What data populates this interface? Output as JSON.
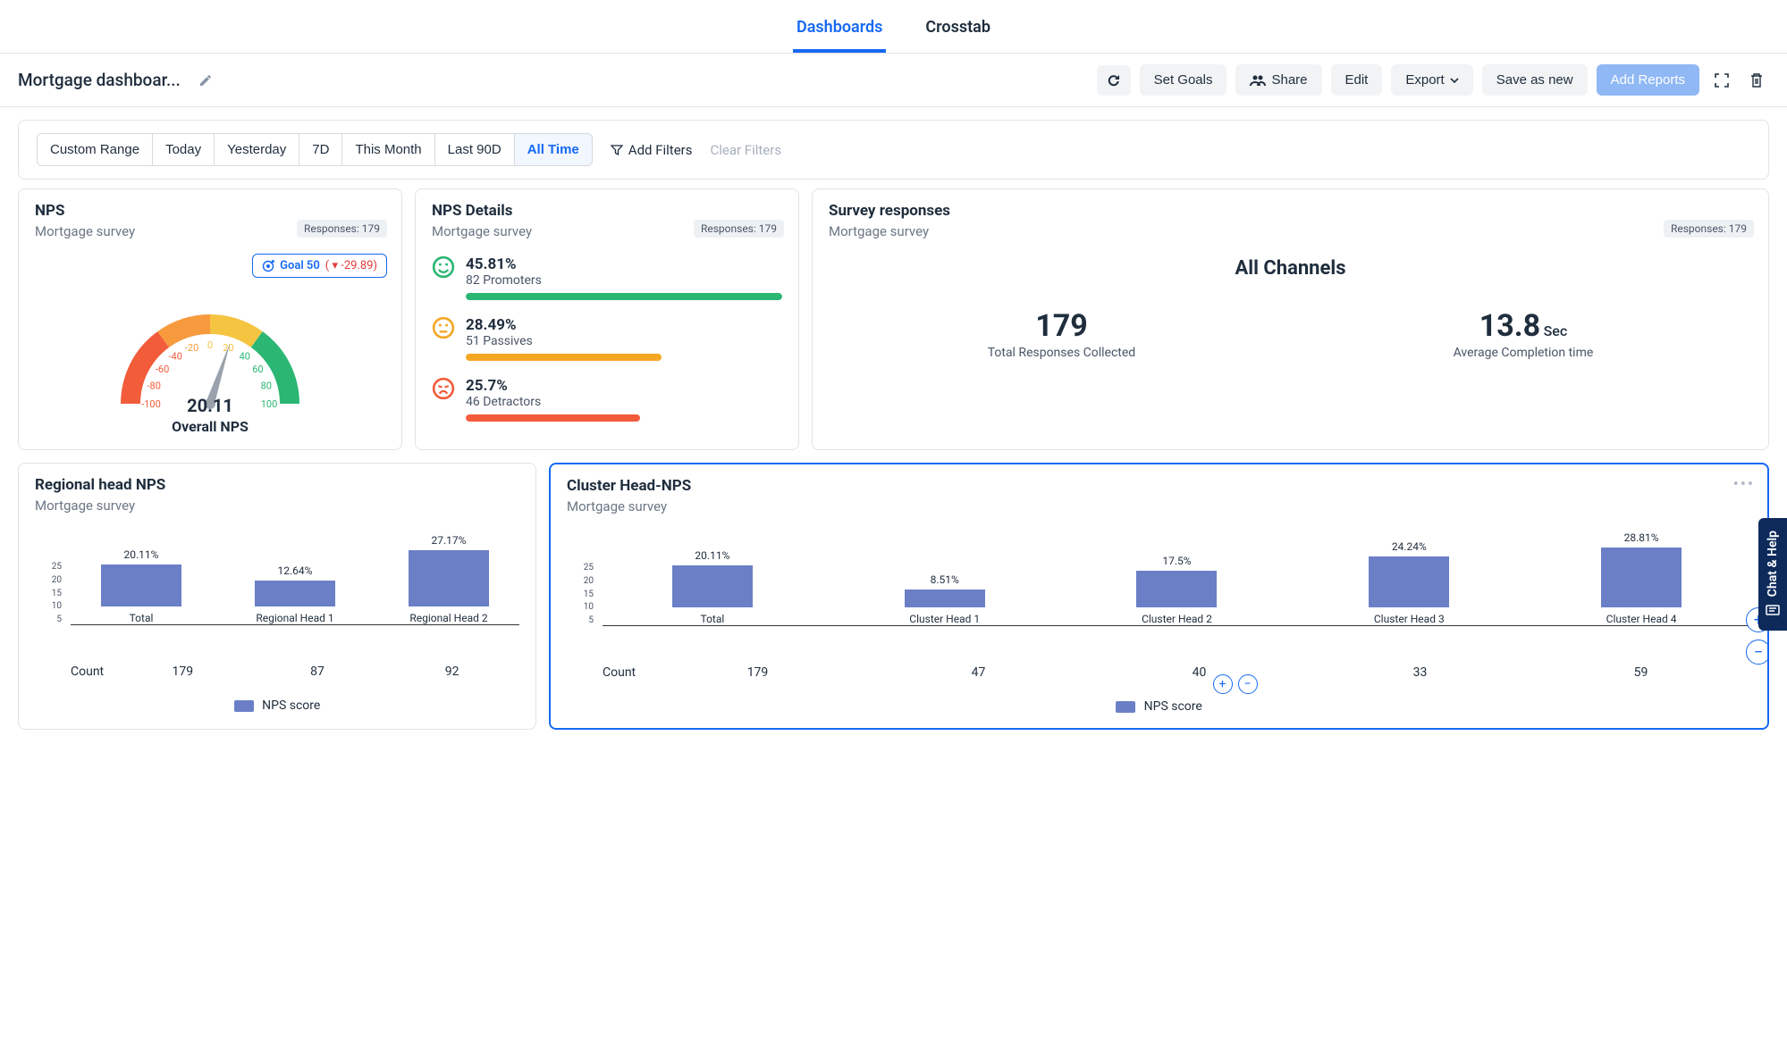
{
  "tabs": {
    "dashboards": "Dashboards",
    "crosstab": "Crosstab",
    "active": "dashboards"
  },
  "toolbar": {
    "title": "Mortgage dashboar...",
    "refresh": "↻",
    "set_goals": "Set Goals",
    "share": "Share",
    "edit": "Edit",
    "export": "Export",
    "save_as_new": "Save as new",
    "add_reports": "Add Reports"
  },
  "filters": {
    "ranges": [
      "Custom Range",
      "Today",
      "Yesterday",
      "7D",
      "This Month",
      "Last 90D",
      "All Time"
    ],
    "active_index": 6,
    "add_filters": "Add Filters",
    "clear_filters": "Clear Filters"
  },
  "colors": {
    "promoter": "#2bb673",
    "passive": "#f5a623",
    "detractor": "#f25c3b",
    "bar": "#6b7fc7",
    "accent": "#1669f2",
    "gauge_red": "#f25c3b",
    "gauge_orange": "#f79a3e",
    "gauge_yellow": "#f5c542",
    "gauge_green": "#2bb673"
  },
  "nps_card": {
    "title": "NPS",
    "subtitle": "Mortgage survey",
    "responses_label": "Responses: 179",
    "goal_label": "Goal 50",
    "goal_delta": "( ▾ -29.89)",
    "value": "20.11",
    "value_label": "Overall NPS",
    "gauge": {
      "ticks": [
        "-100",
        "-80",
        "-60",
        "-40",
        "-20",
        "0",
        "20",
        "40",
        "60",
        "80",
        "100"
      ],
      "needle_value": 20.11
    }
  },
  "details_card": {
    "title": "NPS Details",
    "subtitle": "Mortgage survey",
    "responses_label": "Responses: 179",
    "rows": [
      {
        "pct": "45.81%",
        "label": "82 Promoters",
        "width_pct": 100,
        "color": "#2bb673",
        "face": "smile"
      },
      {
        "pct": "28.49%",
        "label": "51 Passives",
        "width_pct": 62,
        "color": "#f5a623",
        "face": "neutral"
      },
      {
        "pct": "25.7%",
        "label": "46 Detractors",
        "width_pct": 55,
        "color": "#f25c3b",
        "face": "frown"
      }
    ]
  },
  "survey_card": {
    "title": "Survey responses",
    "subtitle": "Mortgage survey",
    "responses_label": "Responses: 179",
    "heading": "All Channels",
    "stats": [
      {
        "num": "179",
        "unit": "",
        "cap": "Total Responses Collected"
      },
      {
        "num": "13.8",
        "unit": "Sec",
        "cap": "Average Completion time"
      }
    ]
  },
  "regional_card": {
    "title": "Regional head NPS",
    "subtitle": "Mortgage survey",
    "y_ticks": [
      "25",
      "20",
      "15",
      "10",
      "5"
    ],
    "y_max": 30,
    "bars": [
      {
        "label": "Total",
        "value": 20.11,
        "display": "20.11%"
      },
      {
        "label": "Regional Head 1",
        "value": 12.64,
        "display": "12.64%"
      },
      {
        "label": "Regional Head 2",
        "value": 27.17,
        "display": "27.17%"
      }
    ],
    "count_label": "Count",
    "counts": [
      "179",
      "87",
      "92"
    ],
    "legend": "NPS score"
  },
  "cluster_card": {
    "title": "Cluster Head-NPS",
    "subtitle": "Mortgage survey",
    "y_ticks": [
      "25",
      "20",
      "15",
      "10",
      "5"
    ],
    "y_max": 30,
    "bars": [
      {
        "label": "Total",
        "value": 20.11,
        "display": "20.11%"
      },
      {
        "label": "Cluster  Head 1",
        "value": 8.51,
        "display": "8.51%"
      },
      {
        "label": "Cluster  Head 2",
        "value": 17.5,
        "display": "17.5%"
      },
      {
        "label": "Cluster  Head 3",
        "value": 24.24,
        "display": "24.24%"
      },
      {
        "label": "Cluster  Head 4",
        "value": 28.81,
        "display": "28.81%"
      }
    ],
    "count_label": "Count",
    "counts": [
      "179",
      "47",
      "40",
      "33",
      "59"
    ],
    "legend": "NPS score"
  },
  "chat_help": "Chat & Help"
}
